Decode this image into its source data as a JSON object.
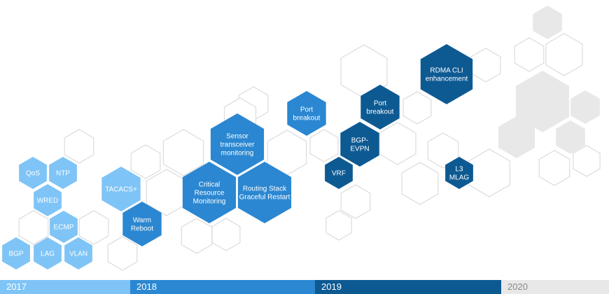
{
  "colors": {
    "y2017": "#7fc4f6",
    "y2018": "#2b87d1",
    "y2019": "#0d5a93",
    "y2020": "#e8e8e8",
    "outline": "#dcdcdc",
    "text_dark": "#888888",
    "text_light": "#ffffff"
  },
  "timeline": [
    {
      "year": "2017",
      "color_key": "y2017"
    },
    {
      "year": "2018",
      "color_key": "y2018"
    },
    {
      "year": "2019",
      "color_key": "y2019"
    },
    {
      "year": "2020",
      "color_key": "y2020"
    }
  ],
  "features": [
    {
      "id": "qos",
      "lines": [
        "QoS"
      ],
      "year": "2017"
    },
    {
      "id": "ntp",
      "lines": [
        "NTP"
      ],
      "year": "2017"
    },
    {
      "id": "wred",
      "lines": [
        "WRED"
      ],
      "year": "2017"
    },
    {
      "id": "ecmp",
      "lines": [
        "ECMP"
      ],
      "year": "2017"
    },
    {
      "id": "bgp",
      "lines": [
        "BGP"
      ],
      "year": "2017"
    },
    {
      "id": "lag",
      "lines": [
        "LAG"
      ],
      "year": "2017"
    },
    {
      "id": "vlan",
      "lines": [
        "VLAN"
      ],
      "year": "2017"
    },
    {
      "id": "tacacs",
      "lines": [
        "TACACS+"
      ],
      "year": "2017"
    },
    {
      "id": "warm-reboot",
      "lines": [
        "Warm",
        "Reboot"
      ],
      "year": "2018"
    },
    {
      "id": "critical-resource-monitoring",
      "lines": [
        "Critical",
        "Resource",
        "Monitoring"
      ],
      "year": "2018"
    },
    {
      "id": "sensor-transceiver-monitoring",
      "lines": [
        "Sensor",
        "transceiver",
        "monitoring"
      ],
      "year": "2018"
    },
    {
      "id": "routing-stack-graceful-restart",
      "lines": [
        "Routing Stack",
        "Graceful Restart"
      ],
      "year": "2018"
    },
    {
      "id": "port-breakout-2018",
      "lines": [
        "Port",
        "breakout"
      ],
      "year": "2018"
    },
    {
      "id": "port-breakout-2019",
      "lines": [
        "Port",
        "breakout"
      ],
      "year": "2019"
    },
    {
      "id": "bgp-evpn",
      "lines": [
        "BGP-",
        "EVPN"
      ],
      "year": "2019"
    },
    {
      "id": "vrf",
      "lines": [
        "VRF"
      ],
      "year": "2019"
    },
    {
      "id": "rdma-cli-enhancement",
      "lines": [
        "RDMA CLI",
        "enhancement"
      ],
      "year": "2019"
    },
    {
      "id": "l3-mlag",
      "lines": [
        "L3",
        "MLAG"
      ],
      "year": "2019"
    }
  ]
}
